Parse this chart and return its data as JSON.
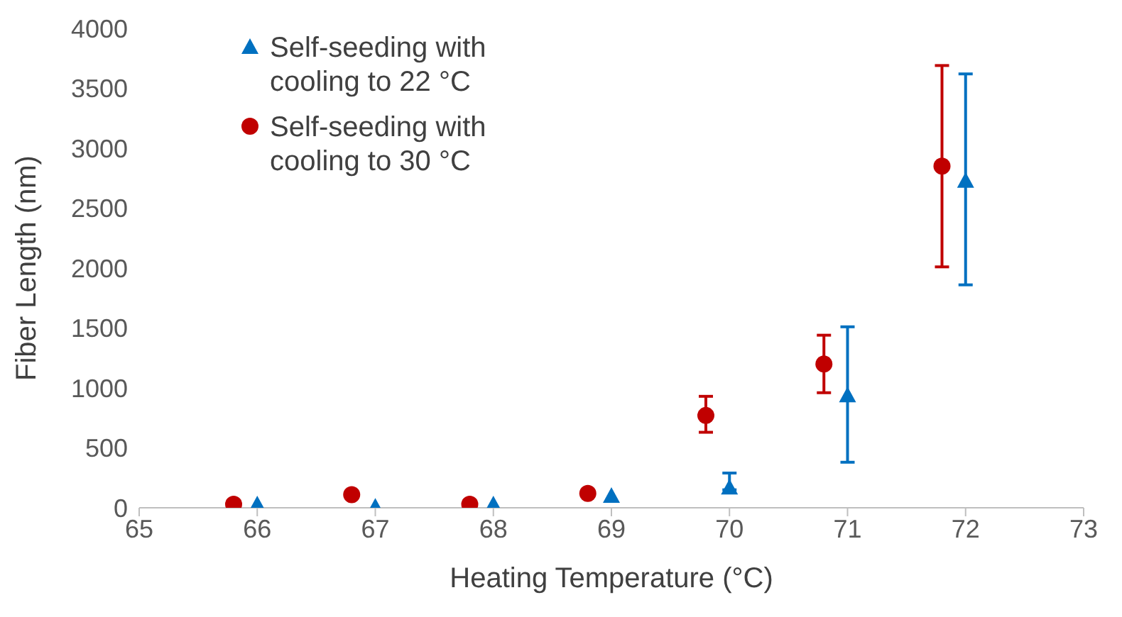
{
  "chart_data": {
    "type": "scatter",
    "xlabel": "Heating Temperature (°C)",
    "ylabel": "Fiber Length (nm)",
    "xlim": [
      65,
      73
    ],
    "xticks": [
      65,
      66,
      67,
      68,
      69,
      70,
      71,
      72,
      73
    ],
    "ylim": [
      0,
      4000
    ],
    "yticks": [
      0,
      500,
      1000,
      1500,
      2000,
      2500,
      3000,
      3500,
      4000
    ],
    "grid": false,
    "legend": "top left",
    "series": [
      {
        "name": "Self-seeding with cooling to 22 °C",
        "color": "#0070c0",
        "marker": "triangle",
        "x": [
          66,
          67,
          68,
          69,
          70,
          71,
          72
        ],
        "values": [
          30,
          10,
          30,
          100,
          170,
          940,
          2730
        ],
        "errors": [
          null,
          null,
          null,
          null,
          [
            150,
            290
          ],
          [
            380,
            1510
          ],
          [
            1860,
            3620
          ]
        ]
      },
      {
        "name": "Self-seeding with cooling to 30 °C",
        "color": "#c00000",
        "marker": "circle",
        "x": [
          65.8,
          66.8,
          67.8,
          68.8,
          69.8,
          70.8,
          71.8
        ],
        "values": [
          30,
          110,
          30,
          120,
          770,
          1200,
          2850
        ],
        "errors": [
          null,
          null,
          null,
          null,
          [
            630,
            930
          ],
          [
            960,
            1440
          ],
          [
            2010,
            3690
          ]
        ]
      }
    ]
  }
}
